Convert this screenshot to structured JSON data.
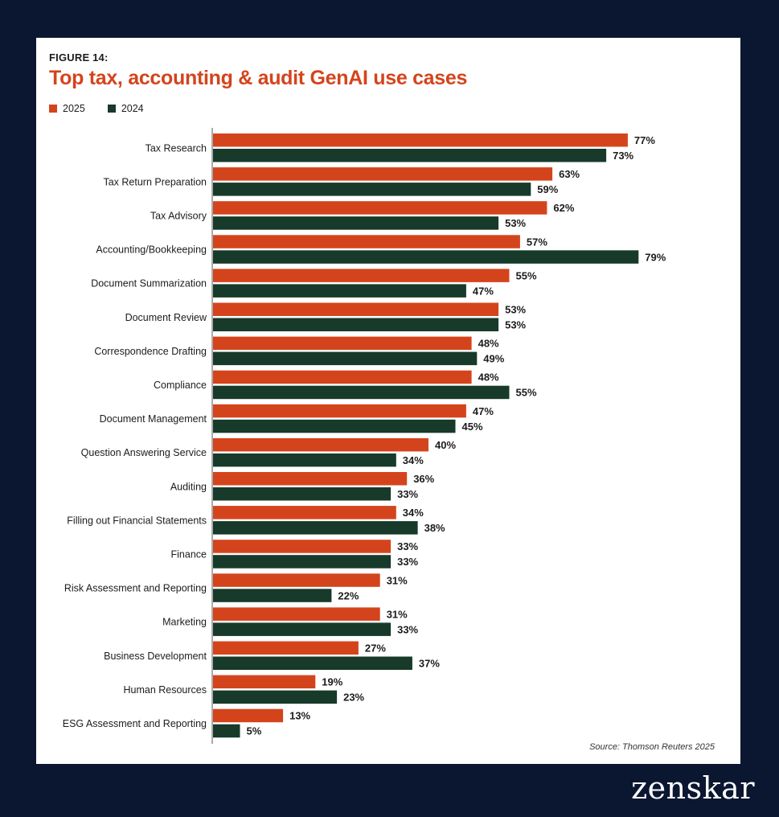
{
  "figure_label": "FIGURE 14:",
  "source": "Source: Thomson Reuters 2025",
  "brand": "zenskar",
  "colors": {
    "2025": "#d4441c",
    "2024": "#173a2a"
  },
  "chart_data": {
    "type": "bar",
    "orientation": "horizontal",
    "title": "Top tax, accounting & audit GenAI use cases",
    "legend_position": "top-left",
    "unit": "%",
    "xlim": [
      0,
      100
    ],
    "categories": [
      "Tax Research",
      "Tax Return Preparation",
      "Tax Advisory",
      "Accounting/Bookkeeping",
      "Document Summarization",
      "Document Review",
      "Correspondence Drafting",
      "Compliance",
      "Document Management",
      "Question Answering Service",
      "Auditing",
      "Filling out Financial Statements",
      "Finance",
      "Risk Assessment and Reporting",
      "Marketing",
      "Business Development",
      "Human Resources",
      "ESG Assessment and Reporting"
    ],
    "series": [
      {
        "name": "2025",
        "values": [
          77,
          63,
          62,
          57,
          55,
          53,
          48,
          48,
          47,
          40,
          36,
          34,
          33,
          31,
          31,
          27,
          19,
          13
        ]
      },
      {
        "name": "2024",
        "values": [
          73,
          59,
          53,
          79,
          47,
          53,
          49,
          55,
          45,
          34,
          33,
          38,
          33,
          22,
          33,
          37,
          23,
          5
        ]
      }
    ]
  }
}
